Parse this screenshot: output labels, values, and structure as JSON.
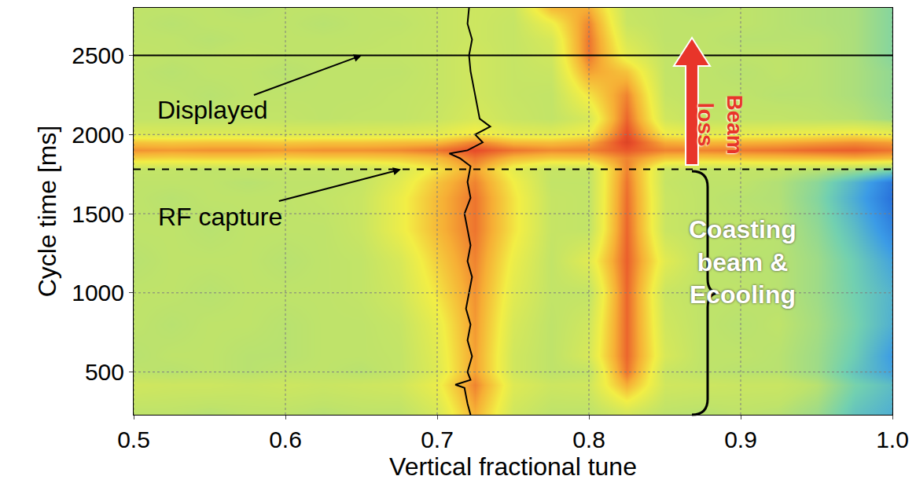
{
  "chart_data": {
    "type": "heatmap",
    "x_label": "Vertical fractional tune",
    "y_label": "Cycle time [ms]",
    "xlim": [
      0.5,
      1.0
    ],
    "ylim": [
      230,
      2800
    ],
    "xticks": [
      0.5,
      0.6,
      0.7,
      0.8,
      0.9,
      {
        "value": 1.0,
        "label": "1.0"
      }
    ],
    "yticks": [
      500,
      1000,
      1500,
      2000,
      2500
    ],
    "grid": true,
    "x": [
      0.5,
      0.525,
      0.55,
      0.575,
      0.6,
      0.625,
      0.65,
      0.675,
      0.7,
      0.725,
      0.75,
      0.775,
      0.8,
      0.825,
      0.85,
      0.875,
      0.9,
      0.925,
      0.95,
      0.975,
      1.0
    ],
    "y": [
      250,
      420,
      500,
      600,
      800,
      1000,
      1200,
      1400,
      1600,
      1700,
      1780,
      1850,
      1900,
      1950,
      2000,
      2100,
      2250,
      2400,
      2500,
      2600,
      2700,
      2800
    ],
    "z": [
      [
        0.45,
        0.45,
        0.44,
        0.45,
        0.45,
        0.44,
        0.45,
        0.45,
        0.52,
        0.72,
        0.5,
        0.45,
        0.45,
        0.52,
        0.45,
        0.44,
        0.45,
        0.44,
        0.4,
        0.3,
        0.25
      ],
      [
        0.5,
        0.49,
        0.49,
        0.48,
        0.49,
        0.48,
        0.49,
        0.5,
        0.58,
        0.78,
        0.54,
        0.49,
        0.5,
        0.72,
        0.5,
        0.49,
        0.48,
        0.48,
        0.44,
        0.34,
        0.28
      ],
      [
        0.45,
        0.44,
        0.45,
        0.44,
        0.45,
        0.45,
        0.44,
        0.46,
        0.54,
        0.74,
        0.5,
        0.45,
        0.46,
        0.8,
        0.48,
        0.45,
        0.44,
        0.44,
        0.4,
        0.3,
        0.22
      ],
      [
        0.44,
        0.45,
        0.45,
        0.44,
        0.44,
        0.45,
        0.45,
        0.46,
        0.55,
        0.74,
        0.5,
        0.45,
        0.52,
        0.82,
        0.52,
        0.45,
        0.45,
        0.44,
        0.4,
        0.32,
        0.2
      ],
      [
        0.45,
        0.44,
        0.45,
        0.45,
        0.44,
        0.45,
        0.45,
        0.47,
        0.57,
        0.75,
        0.52,
        0.45,
        0.5,
        0.82,
        0.5,
        0.45,
        0.44,
        0.45,
        0.41,
        0.34,
        0.25
      ],
      [
        0.45,
        0.45,
        0.44,
        0.45,
        0.45,
        0.45,
        0.46,
        0.5,
        0.62,
        0.76,
        0.55,
        0.46,
        0.46,
        0.82,
        0.48,
        0.45,
        0.45,
        0.44,
        0.4,
        0.33,
        0.26
      ],
      [
        0.44,
        0.45,
        0.45,
        0.45,
        0.44,
        0.45,
        0.46,
        0.52,
        0.66,
        0.78,
        0.58,
        0.46,
        0.55,
        0.83,
        0.55,
        0.45,
        0.44,
        0.44,
        0.4,
        0.32,
        0.22
      ],
      [
        0.45,
        0.45,
        0.44,
        0.45,
        0.45,
        0.45,
        0.48,
        0.58,
        0.7,
        0.8,
        0.62,
        0.47,
        0.46,
        0.82,
        0.48,
        0.45,
        0.45,
        0.44,
        0.38,
        0.28,
        0.15
      ],
      [
        0.45,
        0.44,
        0.45,
        0.45,
        0.45,
        0.46,
        0.48,
        0.58,
        0.7,
        0.8,
        0.62,
        0.47,
        0.46,
        0.81,
        0.48,
        0.45,
        0.44,
        0.43,
        0.36,
        0.24,
        0.1
      ],
      [
        0.45,
        0.45,
        0.45,
        0.44,
        0.45,
        0.45,
        0.47,
        0.55,
        0.68,
        0.78,
        0.6,
        0.46,
        0.46,
        0.8,
        0.47,
        0.45,
        0.45,
        0.43,
        0.37,
        0.26,
        0.12
      ],
      [
        0.46,
        0.46,
        0.45,
        0.46,
        0.46,
        0.46,
        0.47,
        0.52,
        0.62,
        0.74,
        0.56,
        0.47,
        0.47,
        0.78,
        0.48,
        0.46,
        0.46,
        0.46,
        0.44,
        0.4,
        0.35
      ],
      [
        0.66,
        0.65,
        0.66,
        0.66,
        0.65,
        0.66,
        0.66,
        0.67,
        0.7,
        0.8,
        0.7,
        0.67,
        0.68,
        0.78,
        0.68,
        0.67,
        0.68,
        0.69,
        0.7,
        0.72,
        0.7
      ],
      [
        0.76,
        0.75,
        0.76,
        0.76,
        0.75,
        0.76,
        0.76,
        0.77,
        0.8,
        0.86,
        0.8,
        0.77,
        0.78,
        0.84,
        0.78,
        0.78,
        0.79,
        0.8,
        0.82,
        0.83,
        0.8
      ],
      [
        0.68,
        0.67,
        0.68,
        0.68,
        0.67,
        0.68,
        0.68,
        0.69,
        0.7,
        0.78,
        0.7,
        0.69,
        0.72,
        0.88,
        0.72,
        0.7,
        0.71,
        0.72,
        0.74,
        0.76,
        0.74
      ],
      [
        0.54,
        0.53,
        0.54,
        0.54,
        0.53,
        0.54,
        0.54,
        0.55,
        0.56,
        0.62,
        0.56,
        0.55,
        0.6,
        0.86,
        0.6,
        0.56,
        0.57,
        0.58,
        0.6,
        0.62,
        0.58
      ],
      [
        0.46,
        0.46,
        0.45,
        0.46,
        0.46,
        0.45,
        0.46,
        0.46,
        0.48,
        0.52,
        0.48,
        0.46,
        0.52,
        0.82,
        0.5,
        0.46,
        0.46,
        0.46,
        0.45,
        0.44,
        0.4
      ],
      [
        0.45,
        0.45,
        0.44,
        0.45,
        0.45,
        0.45,
        0.45,
        0.46,
        0.47,
        0.5,
        0.47,
        0.46,
        0.62,
        0.78,
        0.47,
        0.45,
        0.45,
        0.44,
        0.44,
        0.42,
        0.38
      ],
      [
        0.45,
        0.44,
        0.45,
        0.45,
        0.44,
        0.45,
        0.45,
        0.45,
        0.47,
        0.5,
        0.47,
        0.48,
        0.74,
        0.68,
        0.46,
        0.45,
        0.44,
        0.45,
        0.44,
        0.42,
        0.38
      ],
      [
        0.46,
        0.45,
        0.45,
        0.46,
        0.45,
        0.45,
        0.46,
        0.46,
        0.47,
        0.5,
        0.47,
        0.5,
        0.8,
        0.56,
        0.46,
        0.45,
        0.45,
        0.45,
        0.44,
        0.42,
        0.36
      ],
      [
        0.45,
        0.45,
        0.44,
        0.45,
        0.45,
        0.45,
        0.45,
        0.46,
        0.47,
        0.49,
        0.47,
        0.52,
        0.8,
        0.52,
        0.45,
        0.45,
        0.44,
        0.44,
        0.44,
        0.42,
        0.36
      ],
      [
        0.45,
        0.44,
        0.45,
        0.45,
        0.45,
        0.44,
        0.45,
        0.45,
        0.47,
        0.49,
        0.47,
        0.58,
        0.78,
        0.48,
        0.45,
        0.45,
        0.45,
        0.44,
        0.43,
        0.42,
        0.36
      ],
      [
        0.45,
        0.45,
        0.45,
        0.44,
        0.45,
        0.45,
        0.45,
        0.46,
        0.47,
        0.49,
        0.48,
        0.7,
        0.72,
        0.47,
        0.45,
        0.44,
        0.45,
        0.44,
        0.43,
        0.42,
        0.36
      ]
    ],
    "zlim": [
      0,
      1
    ],
    "tune": {
      "color": "#000000",
      "x": [
        0.722,
        0.72,
        0.718,
        0.712,
        0.722,
        0.72,
        0.723,
        0.72,
        0.722,
        0.719,
        0.721,
        0.723,
        0.72,
        0.722,
        0.72,
        0.718,
        0.722,
        0.72,
        0.722,
        0.715,
        0.708,
        0.72,
        0.73,
        0.725,
        0.735,
        0.728,
        0.726,
        0.724,
        0.722,
        0.721,
        0.723,
        0.72,
        0.721
      ],
      "y": [
        230,
        300,
        400,
        420,
        450,
        500,
        600,
        700,
        800,
        900,
        1000,
        1100,
        1200,
        1300,
        1400,
        1500,
        1600,
        1700,
        1800,
        1850,
        1880,
        1900,
        1950,
        2000,
        2050,
        2100,
        2200,
        2300,
        2400,
        2500,
        2600,
        2700,
        2800
      ]
    },
    "lines": [
      {
        "y": 2500,
        "label": "Displayed",
        "line_style": "solid",
        "color": "#000000"
      },
      {
        "y": 1780,
        "label": "RF capture",
        "line_style": "dashed",
        "color": "#000000"
      }
    ],
    "annotations": [
      {
        "text": "Beam loss",
        "color": "#e8352a"
      },
      {
        "text": "Coasting beam & Ecooling",
        "color": "#ffffff"
      }
    ]
  }
}
